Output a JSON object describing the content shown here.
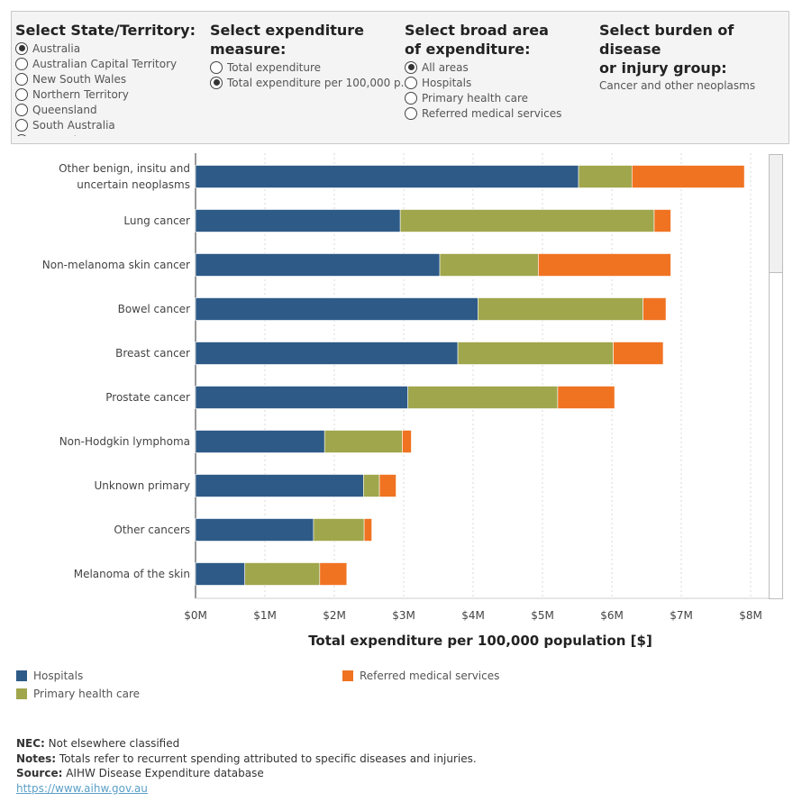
{
  "filters": {
    "state": {
      "title_line1": "Select State/Territory:",
      "options": [
        "Australia",
        "Australian Capital Territory",
        "New South Wales",
        "Northern Territory",
        "Queensland",
        "South Australia",
        "Tasmania"
      ],
      "selected_index": 0
    },
    "measure": {
      "title_line1": "Select expenditure",
      "title_line2": "measure:",
      "options": [
        "Total expenditure",
        "Total expenditure per 100,000 p.."
      ],
      "selected_index": 1
    },
    "area": {
      "title_line1": "Select broad area",
      "title_line2": "of expenditure:",
      "options": [
        "All areas",
        "Hospitals",
        "Primary health care",
        "Referred medical services"
      ],
      "selected_index": 0
    },
    "disease": {
      "title_line1": "Select burden of disease",
      "title_line2": "or injury group:",
      "value": "Cancer and other neoplasms"
    }
  },
  "chart_data": {
    "type": "bar",
    "orientation": "horizontal",
    "stacked": true,
    "categories": [
      [
        "Other benign, insitu and",
        "uncertain neoplasms"
      ],
      [
        "Lung cancer"
      ],
      [
        "Non-melanoma skin cancer"
      ],
      [
        "Bowel cancer"
      ],
      [
        "Breast cancer"
      ],
      [
        "Prostate cancer"
      ],
      [
        "Non-Hodgkin lymphoma"
      ],
      [
        "Unknown primary"
      ],
      [
        "Other cancers"
      ],
      [
        "Melanoma of the skin"
      ]
    ],
    "series": [
      {
        "name": "Hospitals",
        "color": "#2e5a87",
        "values": [
          5.52,
          2.95,
          3.52,
          4.07,
          3.78,
          3.06,
          1.86,
          2.42,
          1.7,
          0.71
        ]
      },
      {
        "name": "Primary health care",
        "color": "#a0a64c",
        "values": [
          0.77,
          3.66,
          1.42,
          2.38,
          2.24,
          2.16,
          1.12,
          0.23,
          0.73,
          1.08
        ]
      },
      {
        "name": "Referred medical services",
        "color": "#f07322",
        "values": [
          1.62,
          0.24,
          1.91,
          0.33,
          0.72,
          0.82,
          0.13,
          0.24,
          0.11,
          0.39
        ]
      }
    ],
    "xlabel": "Total expenditure per 100,000 population [$]",
    "xticks": [
      "$0M",
      "$1M",
      "$2M",
      "$3M",
      "$4M",
      "$5M",
      "$6M",
      "$7M",
      "$8M"
    ],
    "xlim": [
      0,
      8
    ],
    "grid": "vertical-dashed"
  },
  "legend": {
    "items": [
      {
        "label": "Hospitals",
        "color": "#2e5a87"
      },
      {
        "label": "Primary health care",
        "color": "#a0a64c"
      },
      {
        "label": "Referred medical services",
        "color": "#f07322"
      }
    ]
  },
  "notes": {
    "nec_label": "NEC:",
    "nec_text": " Not elsewhere classified",
    "notes_label": "Notes:",
    "notes_text": " Totals refer to recurrent spending attributed to specific diseases and injuries.",
    "source_label": "Source:",
    "source_text": " AIHW Disease Expenditure database",
    "link": "https://www.aihw.gov.au"
  }
}
